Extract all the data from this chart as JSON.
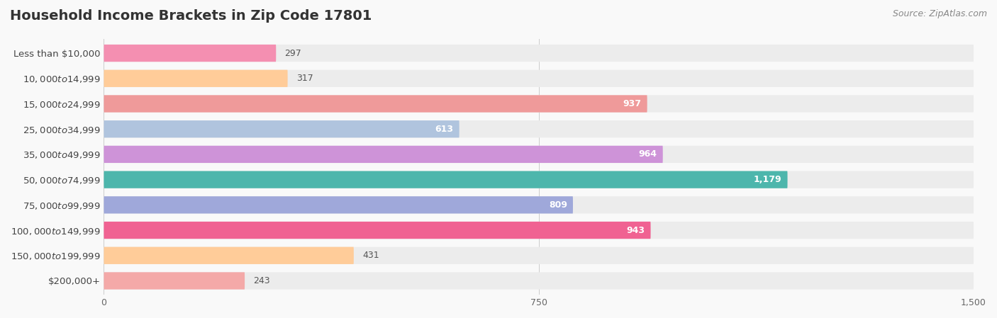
{
  "title": "Household Income Brackets in Zip Code 17801",
  "source": "Source: ZipAtlas.com",
  "categories": [
    "Less than $10,000",
    "$10,000 to $14,999",
    "$15,000 to $24,999",
    "$25,000 to $34,999",
    "$35,000 to $49,999",
    "$50,000 to $74,999",
    "$75,000 to $99,999",
    "$100,000 to $149,999",
    "$150,000 to $199,999",
    "$200,000+"
  ],
  "values": [
    297,
    317,
    937,
    613,
    964,
    1179,
    809,
    943,
    431,
    243
  ],
  "bar_colors": [
    "#f48fb1",
    "#ffcc99",
    "#ef9a9a",
    "#b0c4de",
    "#ce93d8",
    "#4db6ac",
    "#9fa8da",
    "#f06292",
    "#ffcc99",
    "#f4a9a8"
  ],
  "xlim": [
    0,
    1500
  ],
  "xticks": [
    0,
    750,
    1500
  ],
  "background_color": "#f9f9f9",
  "row_bg_color": "#ececec",
  "title_fontsize": 14,
  "label_fontsize": 9.5,
  "value_fontsize": 9,
  "source_fontsize": 9
}
